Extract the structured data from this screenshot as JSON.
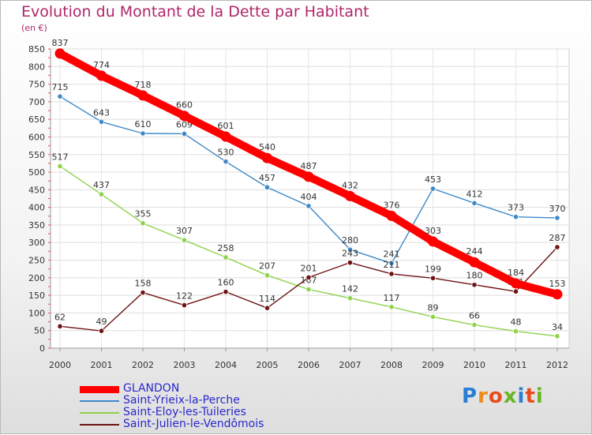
{
  "title": "Evolution du Montant de la Dette par Habitant",
  "unit": "(en €)",
  "logo": {
    "letters": [
      "P",
      "r",
      "o",
      "x",
      "i",
      "t",
      "i"
    ],
    "colors": [
      "#2a7fd4",
      "#f08a1c",
      "#e84c1c",
      "#6ab521",
      "#2a7fd4",
      "#e84c1c",
      "#6ab521"
    ]
  },
  "chart_data": {
    "type": "line",
    "x": [
      "2000",
      "2001",
      "2002",
      "2003",
      "2004",
      "2005",
      "2006",
      "2007",
      "2008",
      "2009",
      "2010",
      "2011",
      "2012"
    ],
    "ylim": [
      0,
      850
    ],
    "yticks": [
      0,
      50,
      100,
      150,
      200,
      250,
      300,
      350,
      400,
      450,
      500,
      550,
      600,
      650,
      700,
      750,
      800,
      850
    ],
    "grid": true,
    "legend_position": "bottom-left",
    "series": [
      {
        "name": "GLANDON",
        "color": "#ff0000",
        "values": [
          837,
          774,
          718,
          660,
          601,
          540,
          487,
          432,
          376,
          303,
          244,
          184,
          153
        ]
      },
      {
        "name": "Saint-Yrieix-la-Perche",
        "color": "#3e88c8",
        "values": [
          715,
          643,
          610,
          609,
          530,
          457,
          404,
          280,
          241,
          453,
          412,
          373,
          370
        ]
      },
      {
        "name": "Saint-Eloy-les-Tuileries",
        "color": "#8ed24c",
        "values": [
          517,
          437,
          355,
          307,
          258,
          207,
          167,
          142,
          117,
          89,
          66,
          48,
          34
        ]
      },
      {
        "name": "Saint-Julien-le-Vendômois",
        "color": "#6e1313",
        "values": [
          62,
          49,
          158,
          122,
          160,
          114,
          201,
          243,
          211,
          199,
          180,
          161,
          287
        ]
      }
    ]
  }
}
